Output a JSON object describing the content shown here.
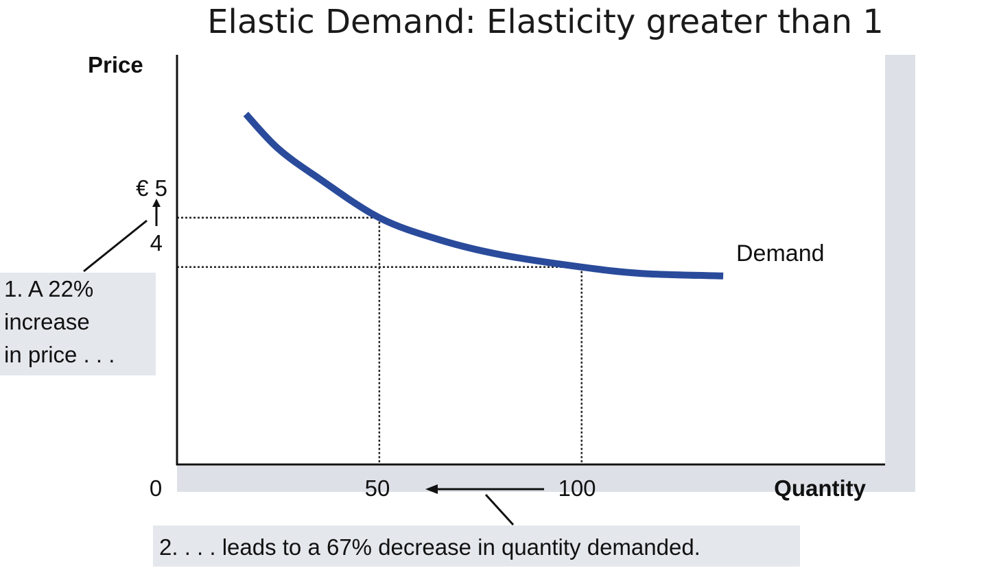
{
  "chart_data": {
    "type": "line",
    "title": "Elastic Demand: Elasticity greater than 1",
    "xlabel": "Quantity",
    "ylabel": "Price",
    "xlim": [
      0,
      175
    ],
    "ylim": [
      0,
      8.3
    ],
    "grid": false,
    "origin_label": "0",
    "x_ticks": [
      {
        "value": 50,
        "label": "50"
      },
      {
        "value": 100,
        "label": "100"
      }
    ],
    "y_ticks": [
      {
        "value": 5,
        "label": "€ 5"
      },
      {
        "value": 4,
        "label": "4"
      }
    ],
    "series": [
      {
        "name": "Demand",
        "color": "#2a4b9b",
        "x": [
          17,
          25,
          35,
          50,
          65,
          80,
          100,
          115,
          135
        ],
        "y": [
          7.1,
          6.4,
          5.8,
          5.0,
          4.55,
          4.25,
          4.0,
          3.87,
          3.82
        ]
      }
    ],
    "reference_points": [
      {
        "x": 50,
        "y": 5
      },
      {
        "x": 100,
        "y": 4
      }
    ],
    "annotations": [
      {
        "id": "price",
        "lines": [
          "1. A 22%",
          "increase",
          "in price . . ."
        ]
      },
      {
        "id": "quantity",
        "lines": [
          "2. . . . leads to a 67% decrease in quantity demanded."
        ]
      }
    ]
  },
  "colors": {
    "curve": "#2a4b9b",
    "shadow": "#dde1e7",
    "annotation_bg": "#e4e7ec"
  }
}
